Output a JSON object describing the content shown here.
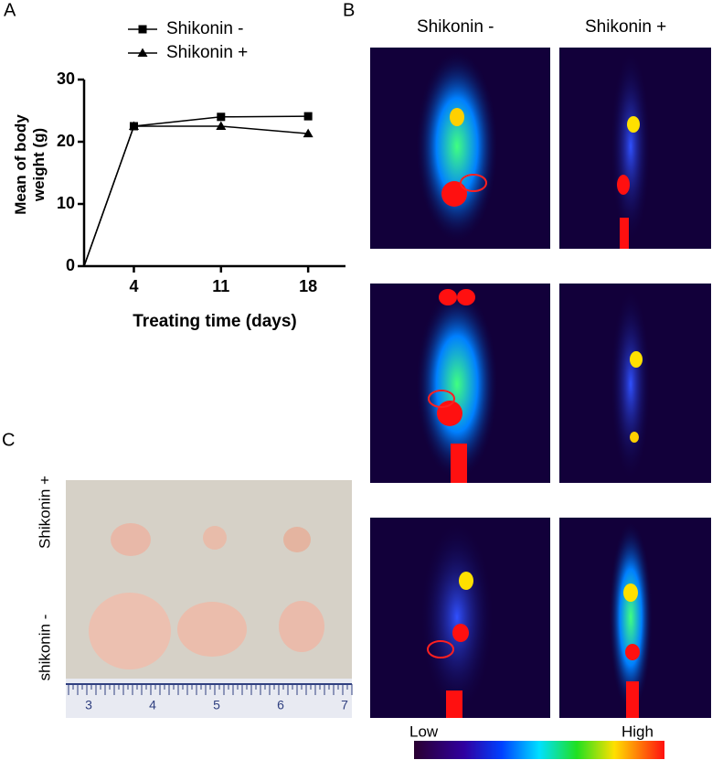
{
  "chart_data": {
    "type": "line",
    "x": [
      0,
      4,
      11,
      18
    ],
    "xlabel": "Treating time (days)",
    "ylabel": "Mean of body weight (g)",
    "xlim": [
      0,
      21
    ],
    "xticks": [
      4,
      11,
      18
    ],
    "ylim": [
      0,
      30
    ],
    "yticks": [
      0,
      10,
      20,
      30
    ],
    "series": [
      {
        "name": "Shikonin -",
        "color": "#000000",
        "marker": "square",
        "values": [
          0,
          22.5,
          24,
          24.1
        ]
      },
      {
        "name": "Shikonin +",
        "color": "#000000",
        "marker": "triangle",
        "values": [
          0,
          22.5,
          22.5,
          21.3
        ]
      }
    ]
  },
  "figure": {
    "panel_labels": [
      "A",
      "B",
      "C"
    ],
    "pet_columns": [
      "Shikonin -",
      "Shikonin +"
    ],
    "colorbar": {
      "low": "Low",
      "high": "High"
    },
    "photo_rows": [
      "Shikonin +",
      "shikonin -"
    ],
    "ruler_numbers": [
      "3",
      "4",
      "5",
      "6",
      "7"
    ]
  }
}
